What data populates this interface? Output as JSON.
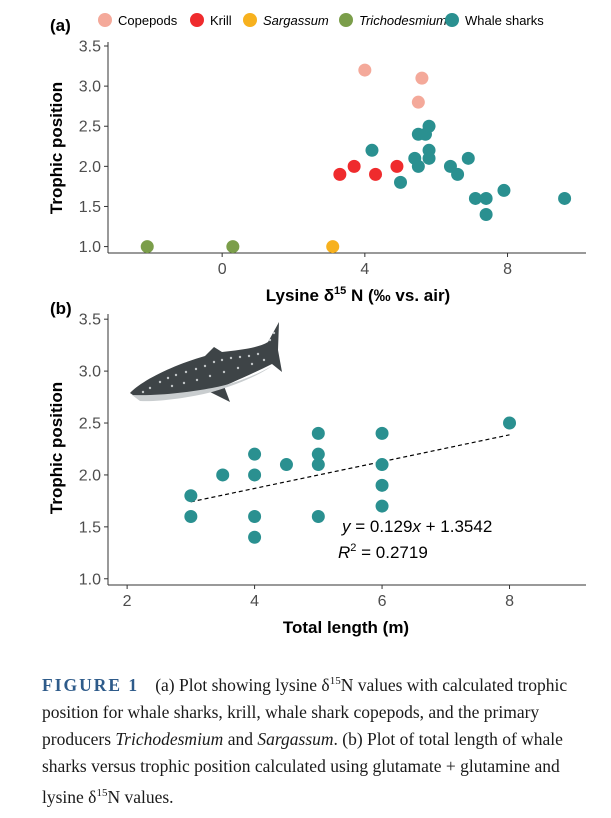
{
  "chart_data": [
    {
      "type": "scatter",
      "panel_label": "(a)",
      "xlabel_pre": "Lysine δ",
      "xlabel_sup": "15",
      "xlabel_post": " N (‰ vs. air)",
      "ylabel": "Trophic position",
      "xlim": [
        -3.2,
        10.2
      ],
      "ylim": [
        0.92,
        3.55
      ],
      "xticks": [
        0,
        4,
        8
      ],
      "yticks": [
        1.0,
        1.5,
        2.0,
        2.5,
        3.0,
        3.5
      ],
      "ytick_labels": [
        "1.0",
        "1.5",
        "2.0",
        "2.5",
        "3.0",
        "3.5"
      ],
      "grid": false,
      "legend_position": "top",
      "series": [
        {
          "name": "Copepods",
          "italic": false,
          "color": "#f4a99a",
          "points": [
            [
              4.0,
              3.2
            ],
            [
              5.6,
              3.1
            ],
            [
              5.5,
              2.8
            ]
          ]
        },
        {
          "name": "Krill",
          "italic": false,
          "color": "#ef2b2d",
          "points": [
            [
              3.3,
              1.9
            ],
            [
              3.7,
              2.0
            ],
            [
              4.3,
              1.9
            ],
            [
              4.9,
              2.0
            ]
          ]
        },
        {
          "name": "Sargassum",
          "italic": true,
          "color": "#f7b11e",
          "points": [
            [
              3.1,
              1.0
            ]
          ]
        },
        {
          "name": "Trichodesmium",
          "italic": true,
          "color": "#7b9e4a",
          "points": [
            [
              -2.1,
              1.0
            ],
            [
              0.3,
              1.0
            ]
          ]
        },
        {
          "name": "Whale sharks",
          "italic": false,
          "color": "#2a9090",
          "points": [
            [
              4.2,
              2.2
            ],
            [
              5.0,
              1.8
            ],
            [
              5.4,
              2.1
            ],
            [
              5.5,
              2.0
            ],
            [
              5.5,
              2.4
            ],
            [
              5.7,
              2.4
            ],
            [
              5.8,
              2.5
            ],
            [
              5.8,
              2.2
            ],
            [
              5.8,
              2.1
            ],
            [
              6.4,
              2.0
            ],
            [
              6.6,
              1.9
            ],
            [
              6.9,
              2.1
            ],
            [
              7.1,
              1.6
            ],
            [
              7.4,
              1.4
            ],
            [
              7.4,
              1.6
            ],
            [
              7.9,
              1.7
            ],
            [
              9.6,
              1.6
            ]
          ]
        }
      ]
    },
    {
      "type": "scatter",
      "panel_label": "(b)",
      "xlabel": "Total length (m)",
      "ylabel": "Trophic position",
      "xlim": [
        1.7,
        9.2
      ],
      "ylim": [
        0.94,
        3.55
      ],
      "xticks": [
        2,
        4,
        6,
        8
      ],
      "yticks": [
        1.0,
        1.5,
        2.0,
        2.5,
        3.0,
        3.5
      ],
      "ytick_labels": [
        "1.0",
        "1.5",
        "2.0",
        "2.5",
        "3.0",
        "3.5"
      ],
      "grid": false,
      "trendline": {
        "slope": 0.129,
        "intercept": 1.3542,
        "x_range": [
          3,
          8
        ],
        "style": "dashed"
      },
      "equation": {
        "y_label": "y",
        "rhs_x": "x",
        "rhs_rest": " + 1.3542",
        "prefix": " = 0.129",
        "r2_label": "R",
        "r2_sup": "2",
        "r2_value": " = 0.2719"
      },
      "color": "#2a9090",
      "points": [
        [
          3,
          1.8
        ],
        [
          3,
          1.6
        ],
        [
          3.5,
          2.0
        ],
        [
          4,
          2.2
        ],
        [
          4,
          2.0
        ],
        [
          4,
          1.6
        ],
        [
          4,
          1.4
        ],
        [
          4.5,
          2.1
        ],
        [
          5,
          2.4
        ],
        [
          5,
          2.2
        ],
        [
          5,
          2.1
        ],
        [
          5,
          1.6
        ],
        [
          6,
          2.4
        ],
        [
          6,
          2.1
        ],
        [
          6,
          1.9
        ],
        [
          6,
          1.7
        ],
        [
          8,
          2.5
        ]
      ]
    }
  ],
  "caption": {
    "figure_label": "FIGURE 1",
    "part1": "(a) Plot showing lysine δ",
    "sup1": "15",
    "part2": "N values with calculated trophic position for whale sharks, krill, whale shark copepods, and the primary producers ",
    "italic1": "Trichodesmium",
    "part3": " and ",
    "italic2": "Sargassum",
    "part4": ". (b) Plot of total length of whale sharks versus trophic position calculated using glutamate + glutamine and lysine δ",
    "sup2": "15",
    "part5": "N values."
  },
  "illustration": {
    "icon": "whale-shark-icon"
  }
}
